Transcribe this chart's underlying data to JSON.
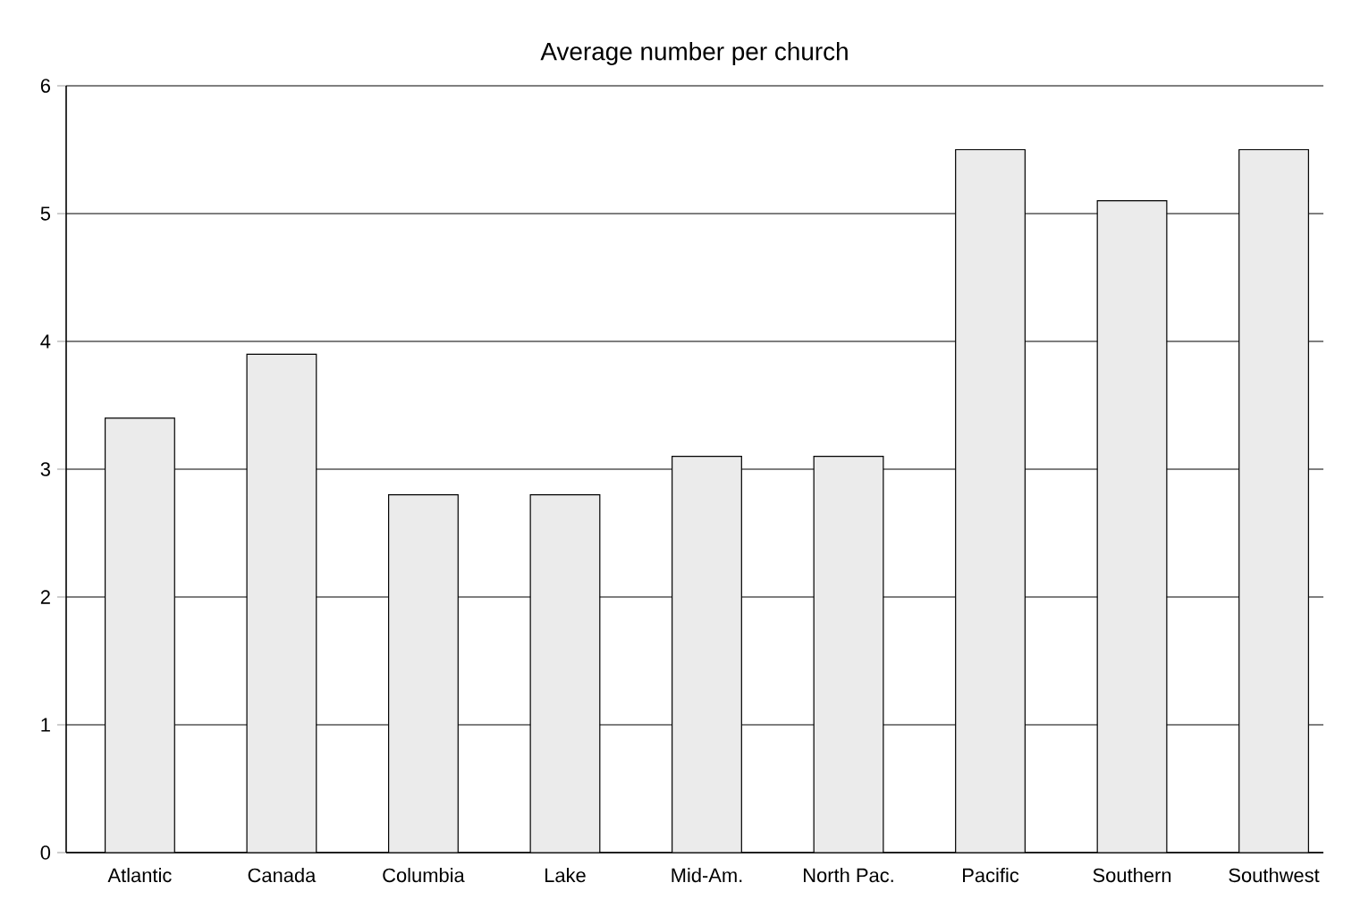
{
  "chart_data": {
    "type": "bar",
    "title": "Average number per church",
    "categories": [
      "Atlantic",
      "Canada",
      "Columbia",
      "Lake",
      "Mid-Am.",
      "North Pac.",
      "Pacific",
      "Southern",
      "Southwest"
    ],
    "values": [
      3.4,
      3.9,
      2.8,
      2.8,
      3.1,
      3.1,
      5.5,
      5.1,
      5.5
    ],
    "color": "#ebebeb",
    "ylim": [
      0,
      6
    ],
    "yticks": [
      0,
      1,
      2,
      3,
      4,
      5,
      6
    ],
    "grid": "y"
  }
}
